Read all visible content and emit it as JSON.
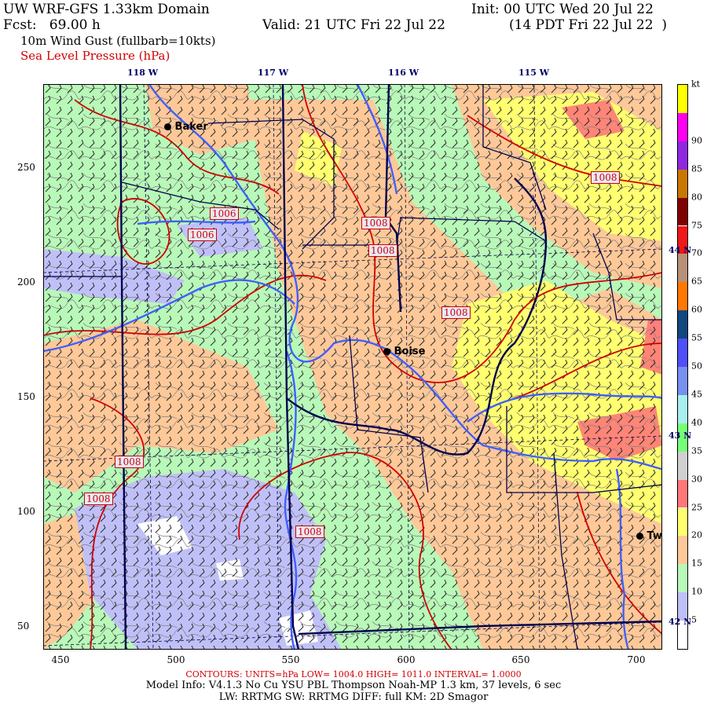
{
  "header": {
    "title": "UW WRF-GFS 1.33km Domain",
    "init": "Init: 00 UTC Wed 20 Jul 22",
    "fcst": "Fcst:   69.00 h",
    "valid": "Valid: 21 UTC Fri 22 Jul 22",
    "local": "(14 PDT Fri 22 Jul 22  )",
    "field1": "10m Wind Gust (fullbarb=10kts)",
    "field2": "Sea Level Pressure (hPa)"
  },
  "longitudes": [
    "118 W",
    "117 W",
    "116 W",
    "115 W"
  ],
  "latitudes": [
    "44 N",
    "43 N",
    "42 N"
  ],
  "x_ticks": [
    "450",
    "500",
    "550",
    "600",
    "650",
    "700"
  ],
  "y_ticks": [
    "50",
    "100",
    "150",
    "200",
    "250"
  ],
  "towns": [
    {
      "name": "Baker"
    },
    {
      "name": "Boise"
    },
    {
      "name": "Tw"
    }
  ],
  "pressure_labels": [
    "1006",
    "1006",
    "1008",
    "1008",
    "1008",
    "1008",
    "1008",
    "1008",
    "1008"
  ],
  "colorbar": {
    "unit": "kt",
    "labels": [
      "5",
      "10",
      "15",
      "20",
      "25",
      "30",
      "35",
      "40",
      "45",
      "50",
      "55",
      "60",
      "65",
      "70",
      "75",
      "80",
      "85",
      "90"
    ],
    "colors": [
      "#ffffff",
      "#c0c0f8",
      "#b8f8b8",
      "#ffc898",
      "#ffff70",
      "#ff7878",
      "#d0d0d0",
      "#78ff78",
      "#a8f0f0",
      "#7890f0",
      "#5050f8",
      "#104880",
      "#ff7800",
      "#b89078",
      "#f01818",
      "#800000",
      "#c87800",
      "#9028e0",
      "#ff00f0",
      "#ffff00"
    ]
  },
  "colors": {
    "state_border": "#000050",
    "river": "#4060ff",
    "slp_contour": "#d00000",
    "terrain_contour": "#707070"
  },
  "footer": {
    "contours": "CONTOURS:  UNITS=hPa  LOW=   1004.0       HIGH=   1011.0       INTERVAL=    1.0000",
    "model": "Model Info: V4.1.3    No Cu    YSU PBL   Thompson     Noah-MP    1.3 km,  37 levels,     6 sec",
    "physics": "LW: RRTMG SW: RRTMG    DIFF: full    KM: 2D Smagor"
  }
}
